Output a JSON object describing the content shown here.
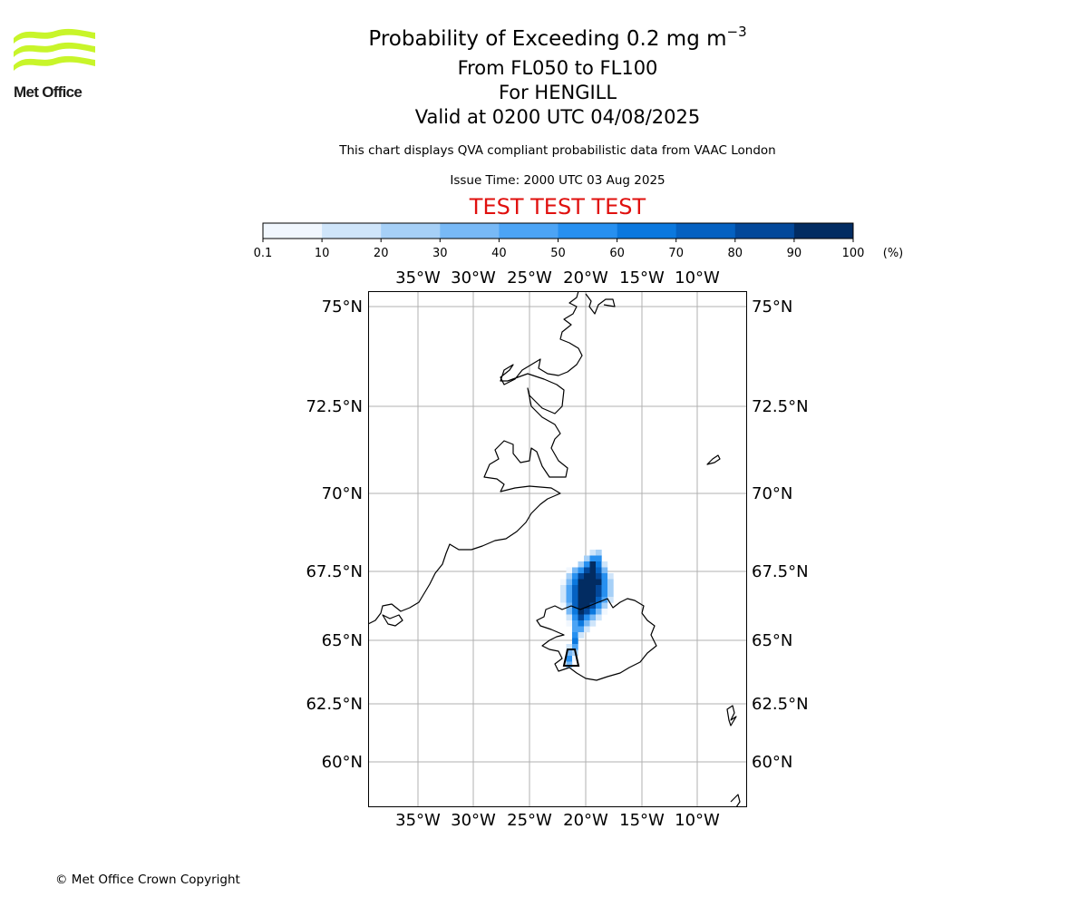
{
  "branding": {
    "logo_text": "Met Office",
    "logo_color": "#c8f52a"
  },
  "title": {
    "main": "Probability of Exceeding 0.2 mg m",
    "main_unit_exp": "−3",
    "levels": "From FL050 to FL100",
    "location": "For HENGILL",
    "valid": "Valid at 0200 UTC 04/08/2025"
  },
  "notes": {
    "qva": "This chart displays QVA compliant probabilistic data from VAAC London",
    "issue_time": "Issue Time: 2000 UTC 03 Aug 2025",
    "test_banner": "TEST TEST TEST"
  },
  "colorbar": {
    "ticks": [
      "0.1",
      "10",
      "20",
      "30",
      "40",
      "50",
      "60",
      "70",
      "80",
      "90",
      "100"
    ],
    "unit": "(%)",
    "colors": [
      "#f1f7fe",
      "#cfe5fa",
      "#a6d0f7",
      "#78b9f6",
      "#4ca4f5",
      "#2790f0",
      "#0b78de",
      "#0561c1",
      "#03489a",
      "#022c62"
    ]
  },
  "map": {
    "lon_labels": [
      "35°W",
      "30°W",
      "25°W",
      "20°W",
      "15°W",
      "10°W"
    ],
    "lat_labels": [
      "75°N",
      "72.5°N",
      "70°N",
      "67.5°N",
      "65°N",
      "62.5°N",
      "60°N"
    ],
    "grid_color": "#b0b0b0"
  },
  "footer": {
    "copyright": "© Met Office Crown Copyright"
  }
}
